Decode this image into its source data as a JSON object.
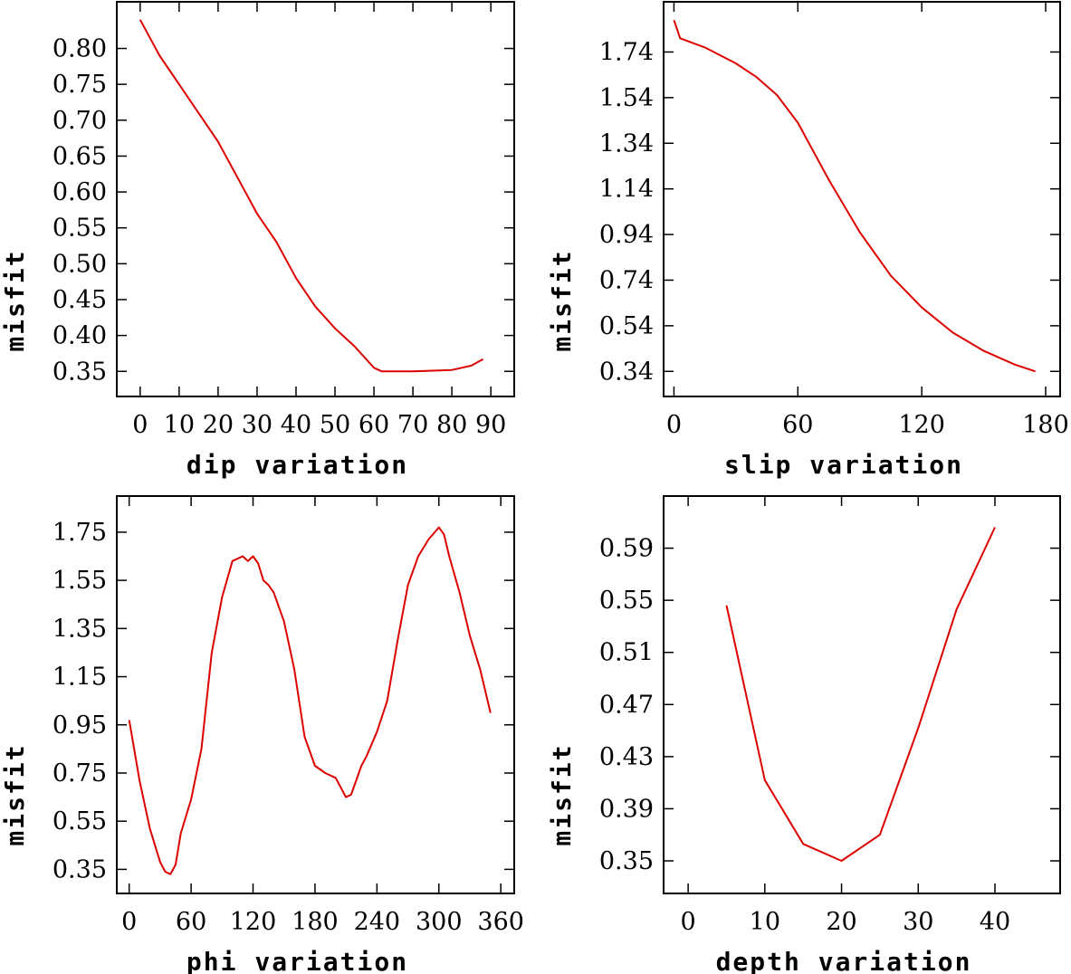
{
  "chart_data": [
    {
      "type": "line",
      "xlabel": "dip    variation",
      "ylabel": "misfit",
      "xlim": [
        -6,
        96
      ],
      "ylim": [
        0.315,
        0.865
      ],
      "xticks": [
        0,
        10,
        20,
        30,
        40,
        50,
        60,
        70,
        80,
        90
      ],
      "yticks": [
        0.35,
        0.4,
        0.45,
        0.5,
        0.55,
        0.6,
        0.65,
        0.7,
        0.75,
        0.8
      ],
      "ytick_labels": [
        "0.35",
        "0.40",
        "0.45",
        "0.50",
        "0.55",
        "0.60",
        "0.65",
        "0.70",
        "0.75",
        "0.80"
      ],
      "color": "#dd0000",
      "series": [
        {
          "name": "dip",
          "x": [
            0,
            5,
            10,
            15,
            20,
            25,
            30,
            35,
            40,
            45,
            50,
            55,
            60,
            62,
            65,
            70,
            75,
            80,
            85,
            88
          ],
          "y": [
            0.84,
            0.79,
            0.75,
            0.71,
            0.67,
            0.62,
            0.57,
            0.53,
            0.48,
            0.44,
            0.41,
            0.385,
            0.355,
            0.35,
            0.35,
            0.35,
            0.351,
            0.352,
            0.358,
            0.367
          ]
        }
      ]
    },
    {
      "type": "line",
      "xlabel": "slip   variation",
      "ylabel": "misfit",
      "xlim": [
        -5,
        187
      ],
      "ylim": [
        0.23,
        1.96
      ],
      "xticks": [
        0,
        60,
        120,
        180
      ],
      "yticks": [
        0.34,
        0.54,
        0.74,
        0.94,
        1.14,
        1.34,
        1.54,
        1.74
      ],
      "ytick_labels": [
        "0.34",
        "0.54",
        "0.74",
        "0.94",
        "1.14",
        "1.34",
        "1.54",
        "1.74"
      ],
      "color": "#dd0000",
      "series": [
        {
          "name": "slip",
          "x": [
            0,
            3,
            15,
            30,
            40,
            50,
            60,
            75,
            90,
            105,
            120,
            135,
            150,
            165,
            175
          ],
          "y": [
            1.88,
            1.8,
            1.76,
            1.69,
            1.63,
            1.55,
            1.43,
            1.18,
            0.95,
            0.76,
            0.62,
            0.51,
            0.43,
            0.37,
            0.34
          ]
        }
      ]
    },
    {
      "type": "line",
      "xlabel": "phi    variation",
      "ylabel": "misfit",
      "xlim": [
        -12,
        373
      ],
      "ylim": [
        0.25,
        1.9
      ],
      "xticks": [
        0,
        60,
        120,
        180,
        240,
        300,
        360
      ],
      "yticks": [
        0.35,
        0.55,
        0.75,
        0.95,
        1.15,
        1.35,
        1.55,
        1.75
      ],
      "ytick_labels": [
        "0.35",
        "0.55",
        "0.75",
        "0.95",
        "1.15",
        "1.35",
        "1.55",
        "1.75"
      ],
      "color": "#dd0000",
      "series": [
        {
          "name": "phi",
          "x": [
            0,
            10,
            20,
            30,
            35,
            40,
            45,
            50,
            60,
            70,
            80,
            90,
            100,
            110,
            115,
            120,
            125,
            130,
            135,
            140,
            150,
            160,
            170,
            180,
            190,
            200,
            210,
            215,
            220,
            225,
            230,
            240,
            250,
            260,
            270,
            280,
            290,
            300,
            305,
            310,
            320,
            330,
            340,
            350
          ],
          "y": [
            0.97,
            0.72,
            0.52,
            0.38,
            0.34,
            0.33,
            0.37,
            0.5,
            0.64,
            0.85,
            1.25,
            1.48,
            1.63,
            1.65,
            1.63,
            1.65,
            1.62,
            1.55,
            1.53,
            1.5,
            1.38,
            1.18,
            0.9,
            0.78,
            0.75,
            0.73,
            0.65,
            0.66,
            0.72,
            0.78,
            0.82,
            0.92,
            1.05,
            1.3,
            1.53,
            1.65,
            1.72,
            1.77,
            1.74,
            1.65,
            1.5,
            1.32,
            1.18,
            1.0
          ]
        }
      ]
    },
    {
      "type": "line",
      "xlabel": "depth  variation",
      "ylabel": "misfit",
      "xlim": [
        -3.2,
        48.5
      ],
      "ylim": [
        0.325,
        0.63
      ],
      "xticks": [
        0,
        10,
        20,
        30,
        40
      ],
      "yticks": [
        0.35,
        0.39,
        0.43,
        0.47,
        0.51,
        0.55,
        0.59
      ],
      "ytick_labels": [
        "0.35",
        "0.39",
        "0.43",
        "0.47",
        "0.51",
        "0.55",
        "0.59"
      ],
      "color": "#dd0000",
      "series": [
        {
          "name": "depth",
          "x": [
            5,
            10,
            15,
            20,
            25,
            30,
            35,
            40
          ],
          "y": [
            0.546,
            0.412,
            0.363,
            0.35,
            0.37,
            0.452,
            0.543,
            0.606
          ]
        }
      ]
    }
  ]
}
